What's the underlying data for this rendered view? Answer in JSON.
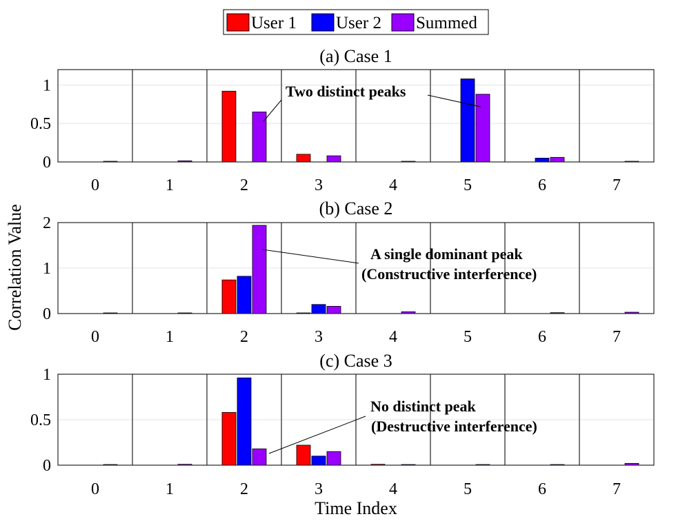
{
  "legend": {
    "position": "top-center",
    "entries": [
      {
        "label": "User 1",
        "color": "#ff0000"
      },
      {
        "label": "User 2",
        "color": "#0000ff"
      },
      {
        "label": "Summed",
        "color": "#9900ff"
      }
    ]
  },
  "ylabel": "Correlation Value",
  "xlabel": "Time Index",
  "chart_data": [
    {
      "type": "bar",
      "title": "(a) Case 1",
      "categories": [
        "0",
        "1",
        "2",
        "3",
        "4",
        "5",
        "6",
        "7"
      ],
      "ylim": [
        0,
        1.2
      ],
      "yticks": [
        "0",
        "0.5",
        "1"
      ],
      "grid": true,
      "series": [
        {
          "name": "User 1",
          "values": [
            0,
            0,
            0.92,
            0.1,
            0,
            0,
            0,
            0
          ]
        },
        {
          "name": "User 2",
          "values": [
            0,
            0,
            0,
            0,
            0,
            1.08,
            0.05,
            0
          ]
        },
        {
          "name": "Summed",
          "values": [
            0.005,
            0.015,
            0.65,
            0.08,
            0.005,
            0.88,
            0.06,
            0.005
          ]
        }
      ],
      "annotations": [
        {
          "text": [
            "Two distinct peaks"
          ]
        }
      ]
    },
    {
      "type": "bar",
      "title": "(b) Case 2",
      "categories": [
        "0",
        "1",
        "2",
        "3",
        "4",
        "5",
        "6",
        "7"
      ],
      "ylim": [
        0,
        2
      ],
      "yticks": [
        "0",
        "1",
        "2"
      ],
      "grid": true,
      "series": [
        {
          "name": "User 1",
          "values": [
            0,
            0,
            0.74,
            0.01,
            0,
            0,
            0,
            0
          ]
        },
        {
          "name": "User 2",
          "values": [
            0,
            0,
            0.82,
            0.2,
            0,
            0,
            0,
            0
          ]
        },
        {
          "name": "Summed",
          "values": [
            0.01,
            0.01,
            1.94,
            0.16,
            0.04,
            0,
            0.02,
            0.03
          ]
        }
      ],
      "annotations": [
        {
          "text": [
            "A single dominant peak",
            "(Constructive interference)"
          ]
        }
      ]
    },
    {
      "type": "bar",
      "title": "(c) Case 3",
      "categories": [
        "0",
        "1",
        "2",
        "3",
        "4",
        "5",
        "6",
        "7"
      ],
      "ylim": [
        0,
        1
      ],
      "yticks": [
        "0",
        "0.5",
        "1"
      ],
      "grid": true,
      "series": [
        {
          "name": "User 1",
          "values": [
            0,
            0,
            0.58,
            0.22,
            0.01,
            0,
            0,
            0
          ]
        },
        {
          "name": "User 2",
          "values": [
            0,
            0,
            0.96,
            0.1,
            0,
            0,
            0,
            0
          ]
        },
        {
          "name": "Summed",
          "values": [
            0.005,
            0.01,
            0.18,
            0.15,
            0.002,
            0.002,
            0.002,
            0.02
          ]
        }
      ],
      "annotations": [
        {
          "text": [
            "No distinct peak",
            "(Destructive interference)"
          ]
        }
      ]
    }
  ]
}
